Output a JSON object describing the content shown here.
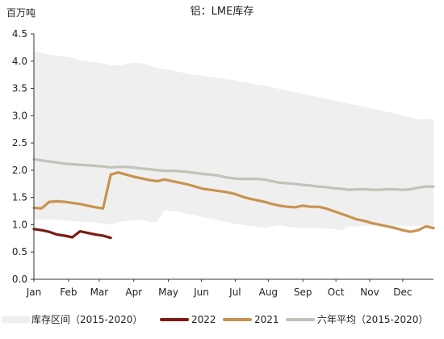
{
  "chart_data": {
    "type": "line",
    "title": "铝：LME库存",
    "ylabel": "百万吨",
    "xlabel": "",
    "ylim": [
      0,
      4.5
    ],
    "yticks": [
      "0.0",
      "0.5",
      "1.0",
      "1.5",
      "2.0",
      "2.5",
      "3.0",
      "3.5",
      "4.0",
      "4.5"
    ],
    "x_unit": "week",
    "x_range": [
      1,
      53
    ],
    "month_ticks": [
      {
        "label": "Jan",
        "week": 1
      },
      {
        "label": "Feb",
        "week": 5.5
      },
      {
        "label": "Mar",
        "week": 9.5
      },
      {
        "label": "Apr",
        "week": 14
      },
      {
        "label": "May",
        "week": 18.5
      },
      {
        "label": "Jun",
        "week": 22.8
      },
      {
        "label": "Jul",
        "week": 27.2
      },
      {
        "label": "Aug",
        "week": 31.5
      },
      {
        "label": "Sep",
        "week": 36
      },
      {
        "label": "Oct",
        "week": 40.3
      },
      {
        "label": "Nov",
        "week": 44.7
      },
      {
        "label": "Dec",
        "week": 49
      }
    ],
    "grid": false,
    "legend_position": "bottom",
    "range_band": {
      "name": "库存区间（2015-2020）",
      "color": "#efefef",
      "x": [
        1,
        2,
        3,
        4,
        5,
        6,
        7,
        8,
        9,
        10,
        11,
        12,
        13,
        14,
        15,
        16,
        17,
        18,
        19,
        20,
        21,
        22,
        23,
        24,
        25,
        26,
        27,
        28,
        29,
        30,
        31,
        32,
        33,
        34,
        35,
        36,
        37,
        38,
        39,
        40,
        41,
        42,
        43,
        44,
        45,
        46,
        47,
        48,
        49,
        50,
        51,
        52,
        53
      ],
      "upper": [
        4.2,
        4.15,
        4.12,
        4.1,
        4.08,
        4.06,
        4.02,
        4.0,
        3.98,
        3.96,
        3.93,
        3.92,
        3.95,
        3.97,
        3.96,
        3.92,
        3.88,
        3.85,
        3.83,
        3.8,
        3.77,
        3.75,
        3.73,
        3.71,
        3.69,
        3.67,
        3.65,
        3.62,
        3.6,
        3.57,
        3.55,
        3.52,
        3.49,
        3.46,
        3.43,
        3.4,
        3.37,
        3.34,
        3.31,
        3.28,
        3.25,
        3.22,
        3.19,
        3.16,
        3.13,
        3.1,
        3.07,
        3.04,
        3.0,
        2.97,
        2.93,
        2.95,
        2.93
      ],
      "lower": [
        1.1,
        1.1,
        1.1,
        1.09,
        1.08,
        1.07,
        1.06,
        1.05,
        1.04,
        1.02,
        1.0,
        1.05,
        1.07,
        1.08,
        1.1,
        1.05,
        1.05,
        1.27,
        1.25,
        1.23,
        1.2,
        1.17,
        1.14,
        1.11,
        1.08,
        1.05,
        1.02,
        1.0,
        0.98,
        0.96,
        0.94,
        0.97,
        0.99,
        0.96,
        0.95,
        0.94,
        0.94,
        0.94,
        0.93,
        0.92,
        0.9,
        0.97,
        0.97,
        0.98,
        0.98,
        0.98,
        0.98,
        0.98,
        0.98,
        0.98,
        0.98,
        0.98,
        0.98
      ]
    },
    "series": [
      {
        "name": "2022",
        "color": "#7b1c15",
        "x": [
          1,
          2,
          3,
          4,
          5,
          6,
          7,
          8,
          9,
          10,
          11
        ],
        "values": [
          0.92,
          0.9,
          0.87,
          0.82,
          0.8,
          0.77,
          0.88,
          0.85,
          0.82,
          0.8,
          0.76
        ]
      },
      {
        "name": "2021",
        "color": "#c8934f",
        "x": [
          1,
          2,
          3,
          4,
          5,
          6,
          7,
          8,
          9,
          10,
          11,
          12,
          13,
          14,
          15,
          16,
          17,
          18,
          19,
          20,
          21,
          22,
          23,
          24,
          25,
          26,
          27,
          28,
          29,
          30,
          31,
          32,
          33,
          34,
          35,
          36,
          37,
          38,
          39,
          40,
          41,
          42,
          43,
          44,
          45,
          46,
          47,
          48,
          49,
          50,
          51,
          52,
          53
        ],
        "values": [
          1.31,
          1.3,
          1.42,
          1.43,
          1.42,
          1.4,
          1.38,
          1.35,
          1.32,
          1.3,
          1.92,
          1.96,
          1.92,
          1.88,
          1.85,
          1.82,
          1.8,
          1.83,
          1.8,
          1.77,
          1.74,
          1.7,
          1.66,
          1.64,
          1.62,
          1.6,
          1.57,
          1.52,
          1.48,
          1.45,
          1.42,
          1.38,
          1.35,
          1.33,
          1.32,
          1.35,
          1.33,
          1.33,
          1.3,
          1.25,
          1.2,
          1.15,
          1.1,
          1.07,
          1.03,
          1.0,
          0.97,
          0.94,
          0.9,
          0.87,
          0.9,
          0.97,
          0.94
        ]
      },
      {
        "name": "六年平均（2015-2020）",
        "color": "#bfc4b8",
        "x": [
          1,
          2,
          3,
          4,
          5,
          6,
          7,
          8,
          9,
          10,
          11,
          12,
          13,
          14,
          15,
          16,
          17,
          18,
          19,
          20,
          21,
          22,
          23,
          24,
          25,
          26,
          27,
          28,
          29,
          30,
          31,
          32,
          33,
          34,
          35,
          36,
          37,
          38,
          39,
          40,
          41,
          42,
          43,
          44,
          45,
          46,
          47,
          48,
          49,
          50,
          51,
          52,
          53
        ],
        "values": [
          2.2,
          2.18,
          2.16,
          2.14,
          2.12,
          2.11,
          2.1,
          2.09,
          2.08,
          2.07,
          2.05,
          2.06,
          2.06,
          2.05,
          2.03,
          2.02,
          2.0,
          1.99,
          1.99,
          1.98,
          1.97,
          1.95,
          1.93,
          1.92,
          1.9,
          1.87,
          1.85,
          1.84,
          1.84,
          1.84,
          1.83,
          1.8,
          1.77,
          1.76,
          1.75,
          1.73,
          1.72,
          1.7,
          1.69,
          1.67,
          1.66,
          1.64,
          1.65,
          1.65,
          1.64,
          1.64,
          1.65,
          1.65,
          1.64,
          1.65,
          1.68,
          1.7,
          1.7
        ]
      }
    ]
  }
}
